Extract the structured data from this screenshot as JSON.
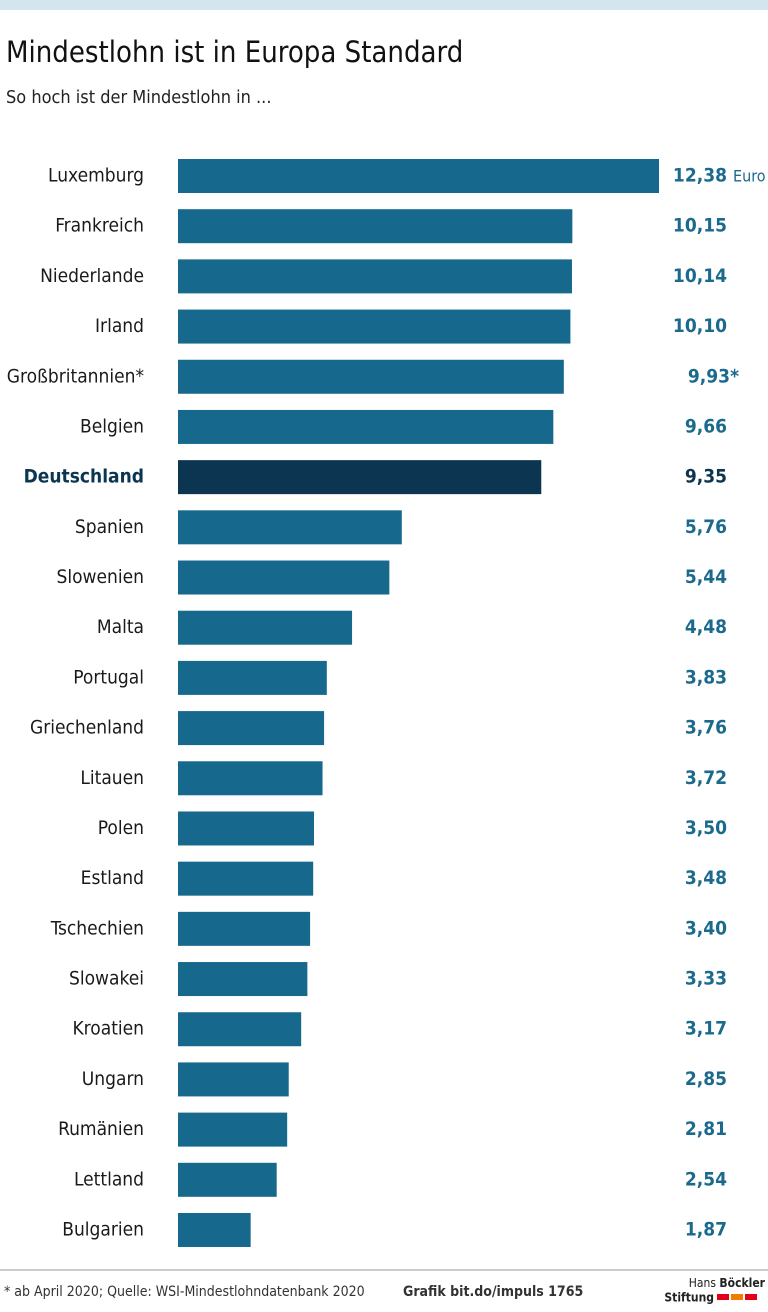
{
  "chart_data": {
    "type": "bar",
    "orientation": "horizontal",
    "title": "Mindestlohn ist in Europa Standard",
    "subtitle": "So hoch ist der Mindestlohn in ...",
    "categories": [
      "Luxemburg",
      "Frankreich",
      "Niederlande",
      "Irland",
      "Großbritannien*",
      "Belgien",
      "Deutschland",
      "Spanien",
      "Slowenien",
      "Malta",
      "Portugal",
      "Griechenland",
      "Litauen",
      "Polen",
      "Estland",
      "Tschechien",
      "Slowakei",
      "Kroatien",
      "Ungarn",
      "Rumänien",
      "Lettland",
      "Bulgarien"
    ],
    "values": [
      12.38,
      10.15,
      10.14,
      10.1,
      9.93,
      9.66,
      9.35,
      5.76,
      5.44,
      4.48,
      3.83,
      3.76,
      3.72,
      3.5,
      3.48,
      3.4,
      3.33,
      3.17,
      2.85,
      2.81,
      2.54,
      1.87
    ],
    "value_labels": [
      "12,38",
      "10,15",
      "10,14",
      "10,10",
      "9,93*",
      "9,66",
      "9,35",
      "5,76",
      "5,44",
      "4,48",
      "3,83",
      "3,76",
      "3,72",
      "3,50",
      "3,48",
      "3,40",
      "3,33",
      "3,17",
      "2,85",
      "2,81",
      "2,54",
      "1,87"
    ],
    "unit": "Euro",
    "color": "#16698c",
    "colors": [
      "#16698c",
      "#16698c",
      "#16698c",
      "#16698c",
      "#16698c",
      "#16698c",
      "#0b3550",
      "#16698c",
      "#16698c",
      "#16698c",
      "#16698c",
      "#16698c",
      "#16698c",
      "#16698c",
      "#16698c",
      "#16698c",
      "#16698c",
      "#16698c",
      "#16698c",
      "#16698c",
      "#16698c",
      "#16698c"
    ],
    "footnote": "* ab April 2020; Quelle: WSI-Mindestlohndatenbank 2020",
    "credit": "Grafik bit.do/impuls 1765",
    "logo": [
      "Hans",
      "Böckler",
      "Stiftung"
    ]
  }
}
